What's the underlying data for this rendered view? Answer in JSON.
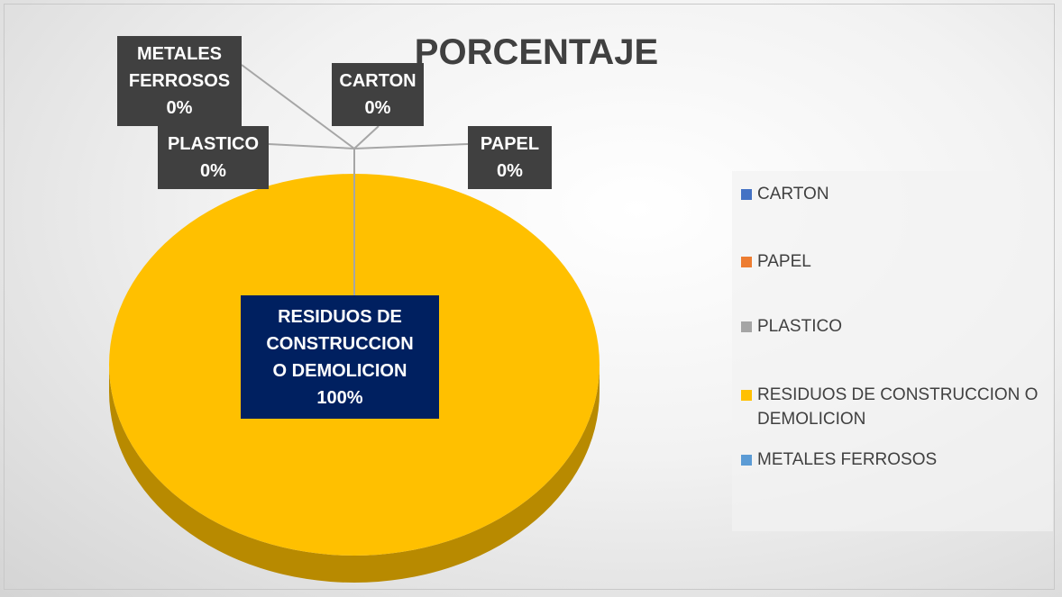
{
  "chart_data": {
    "type": "pie",
    "title": "PORCENTAJE",
    "categories": [
      "CARTON",
      "PAPEL",
      "PLASTICO",
      "RESIDUOS DE CONSTRUCCION O DEMOLICION",
      "METALES FERROSOS"
    ],
    "values": [
      0,
      0,
      0,
      100,
      0
    ],
    "value_labels": [
      "0%",
      "0%",
      "0%",
      "100%",
      "0%"
    ],
    "colors": [
      "#4472c4",
      "#ed7d31",
      "#a5a5a5",
      "#ffc000",
      "#5b9bd5"
    ],
    "legend": "right"
  }
}
